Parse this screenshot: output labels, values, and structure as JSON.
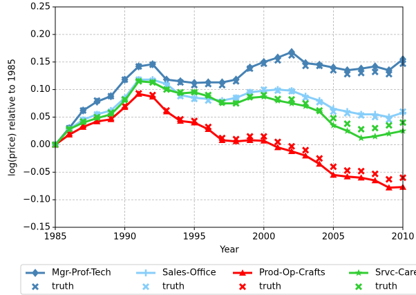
{
  "chart_data": {
    "type": "line",
    "xlabel": "Year",
    "ylabel": "log(price) relative to 1985",
    "x": [
      1985,
      1986,
      1987,
      1988,
      1989,
      1990,
      1991,
      1992,
      1993,
      1994,
      1995,
      1996,
      1997,
      1998,
      1999,
      2000,
      2001,
      2002,
      2003,
      2004,
      2005,
      2006,
      2007,
      2008,
      2009,
      2010
    ],
    "xlim": [
      1985,
      2010
    ],
    "xticks": [
      1985,
      1990,
      1995,
      2000,
      2005,
      2010
    ],
    "ylim": [
      -0.15,
      0.25
    ],
    "yticks": [
      {
        "value": -0.15,
        "label": "−0.15"
      },
      {
        "value": -0.1,
        "label": "−0.10"
      },
      {
        "value": -0.05,
        "label": "−0.05"
      },
      {
        "value": 0,
        "label": "0.00"
      },
      {
        "value": 0.05,
        "label": "0.05"
      },
      {
        "value": 0.1,
        "label": "0.10"
      },
      {
        "value": 0.15,
        "label": "0.15"
      },
      {
        "value": 0.2,
        "label": "0.20"
      },
      {
        "value": 0.25,
        "label": "0.25"
      }
    ],
    "grid": true,
    "legend": "below",
    "series": [
      {
        "name": "Mgr-Prof-Tech",
        "color": "#4682b4",
        "kind": "line",
        "marker": "diamond",
        "values": [
          0,
          0.03,
          0.062,
          0.078,
          0.088,
          0.118,
          0.142,
          0.146,
          0.118,
          0.115,
          0.112,
          0.113,
          0.113,
          0.118,
          0.14,
          0.15,
          0.158,
          0.168,
          0.148,
          0.145,
          0.14,
          0.135,
          0.138,
          0.142,
          0.135,
          0.155
        ]
      },
      {
        "name": "truth",
        "color": "#4682b4",
        "kind": "scatter",
        "marker": "x",
        "values": [
          0,
          0.03,
          0.062,
          0.08,
          0.088,
          0.118,
          0.142,
          0.145,
          0.115,
          0.113,
          0.108,
          0.11,
          0.108,
          0.115,
          0.138,
          0.147,
          0.153,
          0.162,
          0.143,
          0.143,
          0.135,
          0.128,
          0.13,
          0.132,
          0.128,
          0.147
        ]
      },
      {
        "name": "Sales-Office",
        "color": "#87cefa",
        "kind": "line",
        "marker": "plus",
        "values": [
          0,
          0.028,
          0.045,
          0.055,
          0.062,
          0.085,
          0.118,
          0.118,
          0.11,
          0.09,
          0.085,
          0.083,
          0.08,
          0.085,
          0.095,
          0.098,
          0.1,
          0.098,
          0.088,
          0.08,
          0.065,
          0.06,
          0.055,
          0.055,
          0.05,
          0.058
        ]
      },
      {
        "name": "truth",
        "color": "#87cefa",
        "kind": "scatter",
        "marker": "x",
        "values": [
          0,
          0.028,
          0.045,
          0.055,
          0.06,
          0.083,
          0.118,
          0.116,
          0.108,
          0.088,
          0.083,
          0.08,
          0.078,
          0.085,
          0.095,
          0.1,
          0.098,
          0.097,
          0.085,
          0.077,
          0.06,
          0.057,
          0.053,
          0.05,
          0.045,
          0.06
        ]
      },
      {
        "name": "Prod-Op-Crafts",
        "color": "#ff0000",
        "kind": "line",
        "marker": "triangle",
        "values": [
          0,
          0.018,
          0.032,
          0.042,
          0.046,
          0.068,
          0.092,
          0.087,
          0.06,
          0.043,
          0.04,
          0.028,
          0.008,
          0.006,
          0.008,
          0.007,
          -0.005,
          -0.012,
          -0.02,
          -0.035,
          -0.055,
          -0.058,
          -0.06,
          -0.065,
          -0.078,
          -0.077
        ]
      },
      {
        "name": "truth",
        "color": "#ff0000",
        "kind": "scatter",
        "marker": "x",
        "values": [
          0,
          0.02,
          0.035,
          0.045,
          0.048,
          0.07,
          0.093,
          0.09,
          0.062,
          0.046,
          0.043,
          0.032,
          0.012,
          0.01,
          0.015,
          0.015,
          0.005,
          -0.003,
          -0.01,
          -0.025,
          -0.04,
          -0.047,
          -0.048,
          -0.053,
          -0.063,
          -0.06
        ]
      },
      {
        "name": "Srvc-Care",
        "color": "#32cd32",
        "kind": "line",
        "marker": "star",
        "values": [
          0,
          0.028,
          0.04,
          0.048,
          0.055,
          0.08,
          0.115,
          0.113,
          0.1,
          0.093,
          0.095,
          0.088,
          0.075,
          0.075,
          0.085,
          0.087,
          0.08,
          0.075,
          0.07,
          0.06,
          0.035,
          0.025,
          0.012,
          0.015,
          0.02,
          0.025
        ]
      },
      {
        "name": "truth",
        "color": "#32cd32",
        "kind": "scatter",
        "marker": "x",
        "values": [
          0,
          0.028,
          0.042,
          0.05,
          0.058,
          0.082,
          0.115,
          0.113,
          0.1,
          0.095,
          0.095,
          0.09,
          0.077,
          0.075,
          0.087,
          0.09,
          0.083,
          0.082,
          0.075,
          0.062,
          0.048,
          0.038,
          0.028,
          0.03,
          0.035,
          0.04
        ]
      }
    ]
  }
}
